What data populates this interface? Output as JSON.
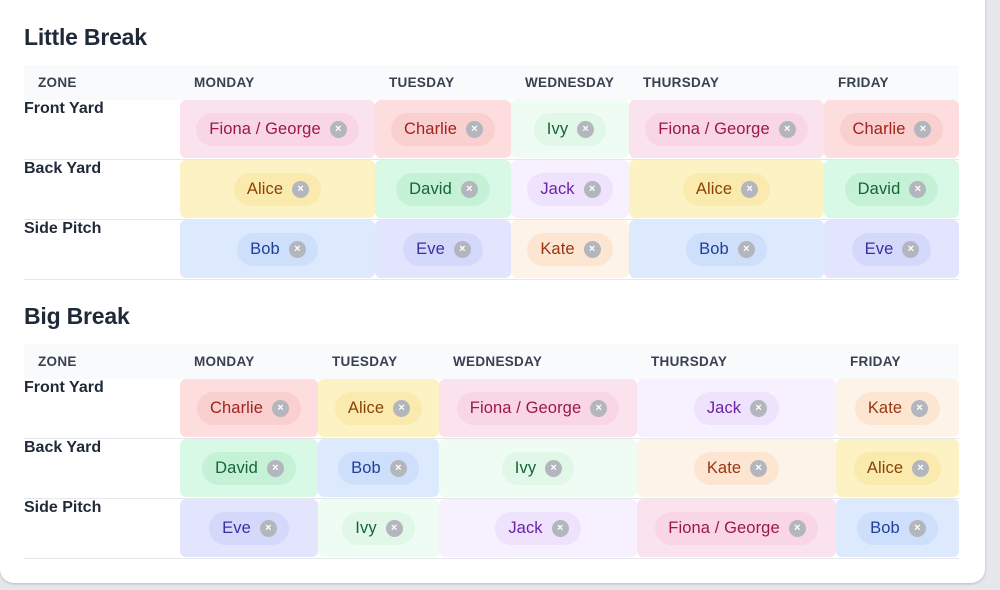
{
  "sections": [
    {
      "title": "Little Break",
      "headers": [
        "ZONE",
        "MONDAY",
        "TUESDAY",
        "WEDNESDAY",
        "THURSDAY",
        "FRIDAY"
      ],
      "rows": [
        {
          "zone": "Front Yard",
          "cells": [
            {
              "name": "Fiona / George",
              "color": "pink"
            },
            {
              "name": "Charlie",
              "color": "red"
            },
            {
              "name": "Ivy",
              "color": "green"
            },
            {
              "name": "Fiona / George",
              "color": "pink"
            },
            {
              "name": "Charlie",
              "color": "red"
            }
          ]
        },
        {
          "zone": "Back Yard",
          "cells": [
            {
              "name": "Alice",
              "color": "yellow"
            },
            {
              "name": "David",
              "color": "mint"
            },
            {
              "name": "Jack",
              "color": "lav"
            },
            {
              "name": "Alice",
              "color": "yellow"
            },
            {
              "name": "David",
              "color": "mint"
            }
          ]
        },
        {
          "zone": "Side Pitch",
          "cells": [
            {
              "name": "Bob",
              "color": "blue"
            },
            {
              "name": "Eve",
              "color": "indigo"
            },
            {
              "name": "Kate",
              "color": "peach"
            },
            {
              "name": "Bob",
              "color": "blue"
            },
            {
              "name": "Eve",
              "color": "indigo"
            }
          ]
        }
      ]
    },
    {
      "title": "Big Break",
      "headers": [
        "ZONE",
        "MONDAY",
        "TUESDAY",
        "WEDNESDAY",
        "THURSDAY",
        "FRIDAY"
      ],
      "rows": [
        {
          "zone": "Front Yard",
          "cells": [
            {
              "name": "Charlie",
              "color": "red"
            },
            {
              "name": "Alice",
              "color": "yellow"
            },
            {
              "name": "Fiona / George",
              "color": "pink"
            },
            {
              "name": "Jack",
              "color": "lav"
            },
            {
              "name": "Kate",
              "color": "peach"
            }
          ]
        },
        {
          "zone": "Back Yard",
          "cells": [
            {
              "name": "David",
              "color": "mint"
            },
            {
              "name": "Bob",
              "color": "blue"
            },
            {
              "name": "Ivy",
              "color": "green"
            },
            {
              "name": "Kate",
              "color": "peach"
            },
            {
              "name": "Alice",
              "color": "yellow"
            }
          ]
        },
        {
          "zone": "Side Pitch",
          "cells": [
            {
              "name": "Eve",
              "color": "indigo"
            },
            {
              "name": "Ivy",
              "color": "green"
            },
            {
              "name": "Jack",
              "color": "lav"
            },
            {
              "name": "Fiona / George",
              "color": "pink"
            },
            {
              "name": "Bob",
              "color": "blue"
            }
          ]
        }
      ]
    }
  ],
  "remove_icon": "close-icon",
  "remove_glyph": "×"
}
